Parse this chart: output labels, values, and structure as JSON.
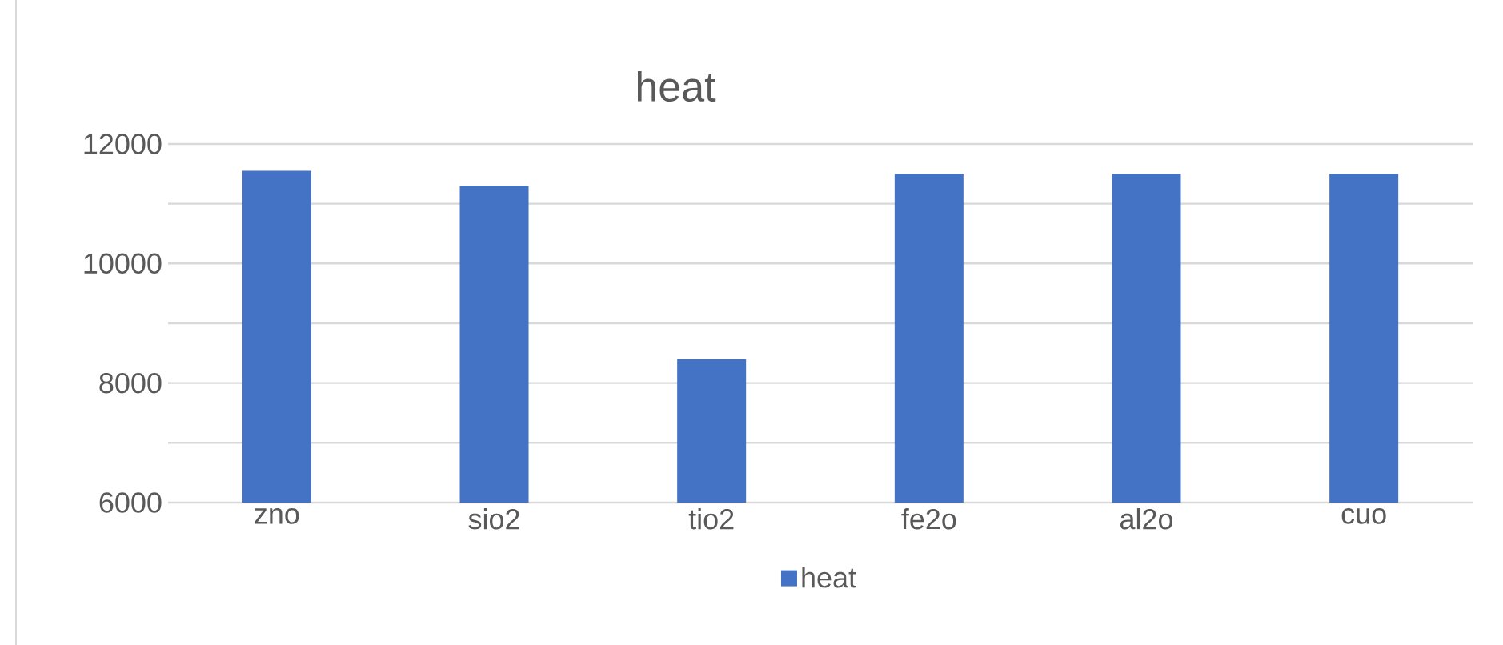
{
  "chart_data": {
    "type": "bar",
    "title": "heat",
    "categories": [
      "zno",
      "sio2",
      "tio2",
      "fe2o",
      "al2o",
      "cuo"
    ],
    "series": [
      {
        "name": "heat",
        "color": "#4472c4",
        "values": [
          11550,
          11300,
          8400,
          11500,
          11500,
          11500
        ]
      }
    ],
    "ylim": [
      6000,
      12000
    ],
    "yticks": [
      6000,
      {
        "value": 7000,
        "label": null
      },
      8000,
      {
        "value": 9000,
        "label": null
      },
      10000,
      {
        "value": 11000,
        "label": null
      },
      12000
    ],
    "grid": "y",
    "legend": "bottom"
  }
}
